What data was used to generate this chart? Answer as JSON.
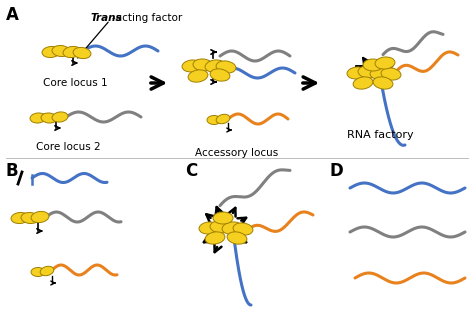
{
  "bg_color": "#ffffff",
  "blue_color": "#4472C4",
  "gray_color": "#808080",
  "orange_color": "#E8821E",
  "yellow_color": "#F5D020",
  "yellow_edge": "#A08000",
  "black": "#000000",
  "label_A": "A",
  "label_B": "B",
  "label_C": "C",
  "label_D": "D",
  "trans_label_italic": "Trans",
  "trans_label_rest": "-acting factor",
  "core_locus_1": "Core locus 1",
  "core_locus_2": "Core locus 2",
  "accessory_locus": "Accessory locus",
  "rna_factory": "RNA factory"
}
